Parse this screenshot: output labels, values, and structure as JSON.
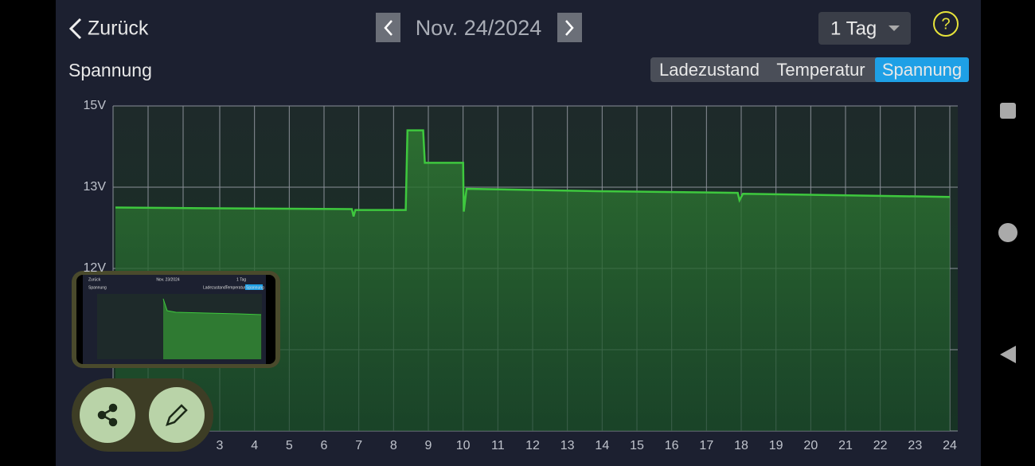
{
  "header": {
    "back": "Zurück",
    "date": "Nov. 24/2024",
    "range": "1 Tag",
    "help": "?"
  },
  "title": "Spannung",
  "tabs": [
    "Ladezustand",
    "Temperatur",
    "Spannung"
  ],
  "thumbnail": {
    "back": "Zurück",
    "date": "Nov. 23/2024",
    "range": "1 Tag",
    "title": "Spannung",
    "tabs": [
      "Ladezustand",
      "Temperatur",
      "Spannung"
    ]
  },
  "chart_data": {
    "type": "line",
    "x": [
      0,
      3,
      6.8,
      6.85,
      6.9,
      8.35,
      8.4,
      8.85,
      8.9,
      10.0,
      10.02,
      10.1,
      14,
      17.9,
      17.95,
      18.05,
      24
    ],
    "values": [
      12.75,
      12.74,
      12.73,
      12.64,
      12.72,
      12.72,
      14.4,
      14.4,
      13.6,
      13.6,
      12.7,
      12.98,
      12.95,
      12.93,
      12.84,
      12.92,
      12.88
    ],
    "color": "#3ec83e",
    "xlim": [
      0,
      24
    ],
    "xticks": [
      3,
      4,
      5,
      6,
      7,
      8,
      9,
      10,
      11,
      12,
      13,
      14,
      15,
      16,
      17,
      18,
      19,
      20,
      21,
      22,
      23,
      24
    ],
    "ylim": [
      10,
      15
    ],
    "yticks": [
      {
        "value": 15,
        "label": "15V"
      },
      {
        "value": 13,
        "label": "13V"
      },
      {
        "value": 12,
        "label": "12V"
      }
    ],
    "grid": true
  }
}
